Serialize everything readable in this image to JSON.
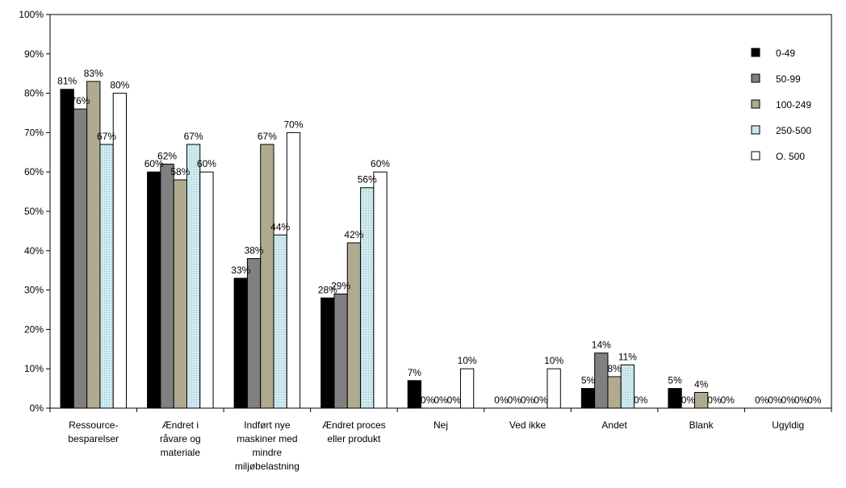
{
  "chart_data": {
    "type": "bar",
    "title": "",
    "xlabel": "",
    "ylabel": "",
    "ylim": [
      0,
      100
    ],
    "yticks": [
      "0%",
      "10%",
      "20%",
      "30%",
      "40%",
      "50%",
      "60%",
      "70%",
      "80%",
      "90%",
      "100%"
    ],
    "grid": false,
    "legend_position": "top-right",
    "categories": [
      [
        "Ressource-",
        "besparelser"
      ],
      [
        "Ændret i",
        "råvare og",
        "materiale"
      ],
      [
        "Indført nye",
        "maskiner med",
        "mindre",
        "miljøbelastning"
      ],
      [
        "Ændret proces",
        "eller produkt"
      ],
      [
        "Nej"
      ],
      [
        "Ved ikke"
      ],
      [
        "Andet"
      ],
      [
        "Blank"
      ],
      [
        "Ugyldig"
      ]
    ],
    "series": [
      {
        "name": "0-49",
        "color": "#000000",
        "pattern": "solid",
        "values": [
          81,
          60,
          33,
          28,
          7,
          0,
          5,
          5,
          0
        ],
        "labels": [
          "81%",
          "60%",
          "33%",
          "28%",
          "7%",
          "0%",
          "5%",
          "5%",
          "0%"
        ]
      },
      {
        "name": "50-99",
        "color": "#808080",
        "pattern": "solid",
        "values": [
          76,
          62,
          38,
          29,
          0,
          0,
          14,
          0,
          0
        ],
        "labels": [
          "76%",
          "62%",
          "38%",
          "29%",
          "0%",
          "0%",
          "14%",
          "0%",
          "0%"
        ]
      },
      {
        "name": "100-249",
        "color": "#b0aa90",
        "pattern": "solid",
        "values": [
          83,
          58,
          67,
          42,
          0,
          0,
          8,
          4,
          0
        ],
        "labels": [
          "83%",
          "58%",
          "67%",
          "42%",
          "0%",
          "0%",
          "8%",
          "4%",
          "0%"
        ]
      },
      {
        "name": "250-500",
        "color": "#d8eff4",
        "pattern": "dotted",
        "values": [
          67,
          67,
          44,
          56,
          0,
          0,
          11,
          0,
          0
        ],
        "labels": [
          "67%",
          "67%",
          "44%",
          "56%",
          "0%",
          "0%",
          "11%",
          "0%",
          "0%"
        ]
      },
      {
        "name": "O. 500",
        "color": "#ffffff",
        "pattern": "solid",
        "values": [
          80,
          60,
          70,
          60,
          10,
          10,
          0,
          0,
          0
        ],
        "labels": [
          "80%",
          "60%",
          "70%",
          "60%",
          "10%",
          "10%",
          "0%",
          "0%",
          "0%"
        ]
      }
    ]
  }
}
